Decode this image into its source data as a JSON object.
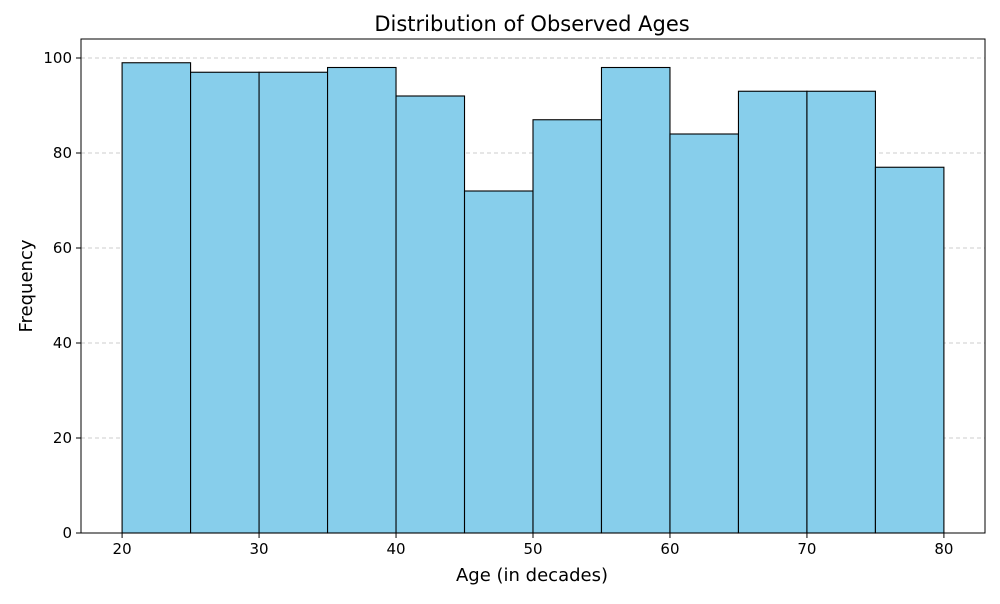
{
  "chart_data": {
    "type": "bar",
    "title": "Distribution of Observed Ages",
    "xlabel": "Age (in decades)",
    "ylabel": "Frequency",
    "bin_edges": [
      20,
      25,
      30,
      35,
      40,
      45,
      50,
      55,
      60,
      65,
      70,
      75,
      80
    ],
    "values": [
      99,
      97,
      97,
      98,
      92,
      72,
      87,
      98,
      84,
      93,
      93,
      77
    ],
    "xlim": [
      17,
      83
    ],
    "ylim": [
      0,
      104
    ],
    "x_ticks": [
      20,
      30,
      40,
      50,
      60,
      70,
      80
    ],
    "y_ticks": [
      0,
      20,
      40,
      60,
      80,
      100
    ],
    "grid": "y-dashed",
    "colors": {
      "bar_fill": "#87CEEB",
      "bar_edge": "#000000",
      "grid": "#cccccc"
    }
  }
}
